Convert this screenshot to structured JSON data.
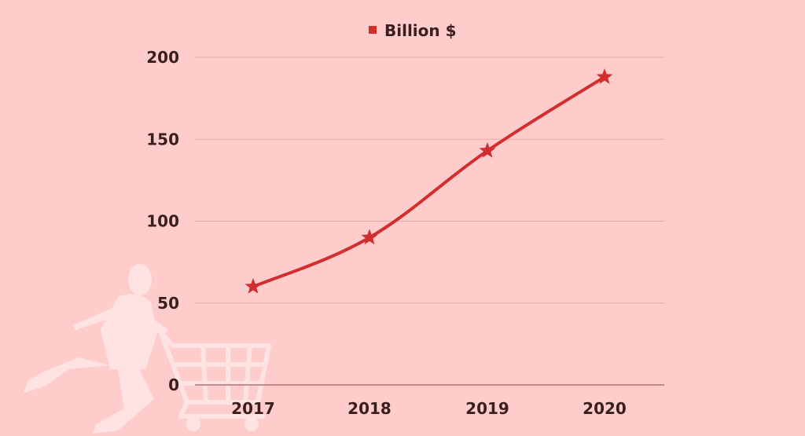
{
  "colors": {
    "background": "#ffcccc",
    "series": "#d12f2f",
    "gridline": "#e8a8a8",
    "text": "#3a1f1f",
    "decoration": "#ffe3e3"
  },
  "chart_data": {
    "type": "line",
    "categories": [
      "2017",
      "2018",
      "2019",
      "2020"
    ],
    "series": [
      {
        "name": "Billion $",
        "values": [
          60,
          90,
          143,
          188
        ],
        "marker": "star"
      }
    ],
    "ylim": [
      0,
      200
    ],
    "yticks": [
      0,
      50,
      100,
      150,
      200
    ],
    "grid": true,
    "legend": "top-center",
    "title": "",
    "xlabel": "",
    "ylabel": ""
  },
  "decoration": {
    "icon": "shopping-cart-person-icon"
  }
}
